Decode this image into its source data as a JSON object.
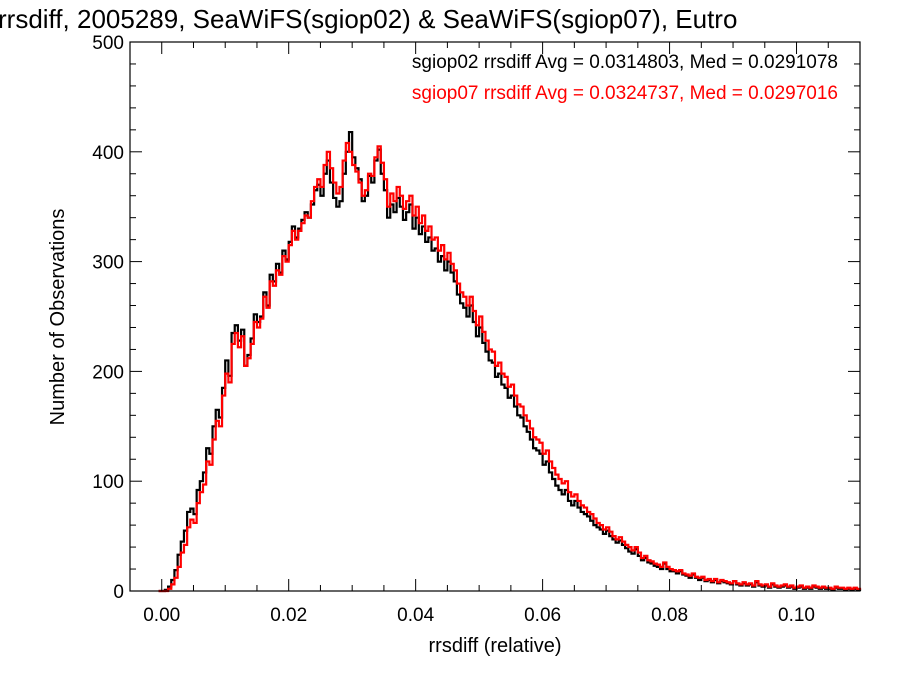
{
  "chart_data": {
    "type": "histogram-step",
    "title": "rrsdiff, 2005289, SeaWiFS(sgiop02) & SeaWiFS(sgiop07), Eutro",
    "xlabel": "rrsdiff (relative)",
    "ylabel": "Number of Observations",
    "xlim": [
      -0.005,
      0.11
    ],
    "ylim": [
      0,
      500
    ],
    "xticks": [
      0.0,
      0.02,
      0.04,
      0.06,
      0.08,
      0.1
    ],
    "xtick_labels": [
      "0.00",
      "0.02",
      "0.04",
      "0.06",
      "0.08",
      "0.10"
    ],
    "yticks": [
      0,
      100,
      200,
      300,
      400,
      500
    ],
    "ytick_labels": [
      "0",
      "100",
      "200",
      "300",
      "400",
      "500"
    ],
    "bin_width": 0.0005,
    "x_start": -0.0005,
    "annotations": [
      {
        "text": "sgiop02 rrsdiff Avg = 0.0314803, Med = 0.0291078",
        "color": "#000000"
      },
      {
        "text": "sgiop07 rrsdiff Avg = 0.0324737, Med = 0.0297016",
        "color": "#ff0000"
      }
    ],
    "series": [
      {
        "color": "#000000",
        "values": [
          0,
          0,
          1,
          4,
          10,
          19,
          33,
          45,
          55,
          72,
          75,
          70,
          92,
          100,
          108,
          130,
          125,
          150,
          165,
          158,
          185,
          210,
          196,
          235,
          242,
          228,
          238,
          205,
          215,
          230,
          252,
          245,
          250,
          272,
          260,
          288,
          282,
          298,
          290,
          310,
          302,
          318,
          332,
          322,
          330,
          338,
          345,
          340,
          352,
          365,
          370,
          360,
          380,
          392,
          372,
          358,
          350,
          355,
          380,
          400,
          418,
          395,
          385,
          375,
          355,
          360,
          378,
          372,
          392,
          402,
          380,
          365,
          340,
          352,
          345,
          358,
          350,
          338,
          345,
          352,
          330,
          340,
          325,
          332,
          318,
          322,
          310,
          312,
          300,
          305,
          292,
          300,
          290,
          282,
          270,
          262,
          258,
          250,
          260,
          245,
          232,
          240,
          226,
          218,
          210,
          208,
          195,
          198,
          188,
          185,
          176,
          178,
          168,
          160,
          158,
          150,
          145,
          138,
          130,
          128,
          125,
          115,
          118,
          108,
          102,
          96,
          92,
          88,
          92,
          82,
          78,
          82,
          76,
          72,
          70,
          68,
          64,
          60,
          58,
          56,
          52,
          55,
          50,
          47,
          44,
          46,
          42,
          39,
          36,
          34,
          38,
          32,
          28,
          30,
          26,
          25,
          23,
          22,
          20,
          25,
          20,
          18,
          18,
          16,
          18,
          15,
          14,
          12,
          15,
          12,
          10,
          12,
          9,
          10,
          8,
          10,
          7,
          9,
          8,
          7,
          6,
          9,
          6,
          5,
          7,
          5,
          6,
          4,
          8,
          5,
          4,
          5,
          3,
          6,
          4,
          3,
          4,
          5,
          3,
          4,
          2,
          3,
          4,
          2,
          3,
          2,
          4,
          3,
          2,
          3,
          2,
          2,
          1,
          3,
          2,
          2,
          1,
          2,
          1,
          2,
          1,
          1,
          2,
          1,
          1
        ]
      },
      {
        "color": "#ff0000",
        "values": [
          0,
          0,
          0,
          2,
          6,
          12,
          22,
          35,
          42,
          58,
          65,
          62,
          80,
          90,
          97,
          118,
          115,
          138,
          155,
          150,
          178,
          198,
          190,
          225,
          235,
          222,
          232,
          205,
          212,
          225,
          245,
          240,
          248,
          268,
          258,
          282,
          278,
          292,
          288,
          305,
          300,
          315,
          328,
          320,
          328,
          335,
          342,
          340,
          355,
          368,
          375,
          368,
          388,
          400,
          385,
          372,
          362,
          368,
          392,
          408,
          400,
          388,
          382,
          372,
          360,
          365,
          380,
          378,
          395,
          405,
          390,
          375,
          350,
          362,
          355,
          368,
          360,
          348,
          355,
          360,
          342,
          350,
          335,
          342,
          328,
          332,
          320,
          322,
          310,
          315,
          302,
          308,
          298,
          292,
          280,
          272,
          268,
          260,
          268,
          255,
          242,
          250,
          236,
          228,
          220,
          218,
          205,
          208,
          198,
          195,
          186,
          188,
          178,
          170,
          168,
          160,
          155,
          148,
          140,
          138,
          135,
          125,
          128,
          118,
          112,
          106,
          102,
          98,
          100,
          90,
          86,
          88,
          82,
          78,
          76,
          72,
          70,
          66,
          62,
          60,
          56,
          58,
          54,
          50,
          47,
          49,
          45,
          42,
          40,
          37,
          40,
          35,
          30,
          32,
          28,
          27,
          25,
          24,
          22,
          26,
          22,
          20,
          19,
          18,
          19,
          16,
          15,
          14,
          16,
          13,
          12,
          13,
          10,
          11,
          9,
          11,
          8,
          10,
          9,
          8,
          7,
          9,
          7,
          6,
          8,
          6,
          7,
          5,
          9,
          6,
          5,
          6,
          4,
          7,
          5,
          4,
          5,
          6,
          4,
          5,
          3,
          4,
          5,
          3,
          4,
          3,
          5,
          4,
          3,
          4,
          3,
          3,
          2,
          4,
          3,
          3,
          2,
          3,
          2,
          3,
          2,
          2,
          3,
          2,
          2
        ]
      }
    ]
  }
}
